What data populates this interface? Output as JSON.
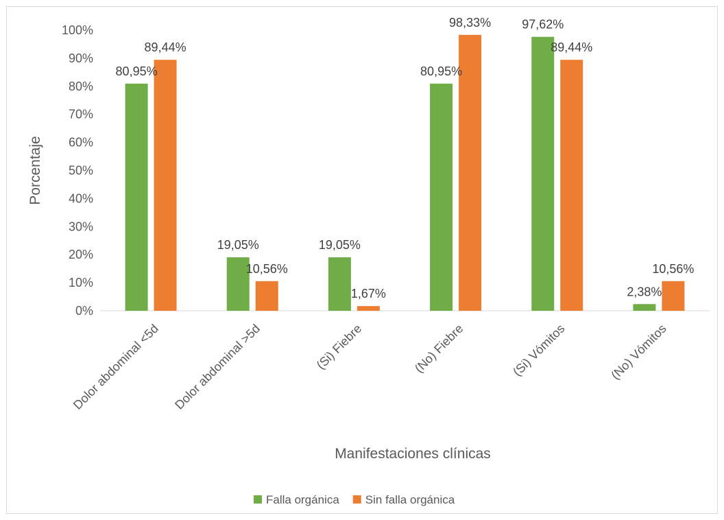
{
  "chart_data": {
    "type": "bar",
    "title": "",
    "xlabel": "Manifestaciones clínicas",
    "ylabel": "Porcentaje",
    "ylim": [
      0,
      100
    ],
    "y_ticks": [
      "0%",
      "10%",
      "20%",
      "30%",
      "40%",
      "50%",
      "60%",
      "70%",
      "80%",
      "90%",
      "100%"
    ],
    "categories": [
      "Dolor abdominal <5d",
      "Dolor abdominal >5d",
      "(Si) Fiebre",
      "(No) Fiebre",
      "(Si) Vómitos",
      "(No) Vómitos"
    ],
    "series": [
      {
        "name": "Falla orgánica",
        "color": "#70ad47",
        "values": [
          80.95,
          19.05,
          19.05,
          80.95,
          97.62,
          2.38
        ],
        "labels": [
          "80,95%",
          "19,05%",
          "19,05%",
          "80,95%",
          "97,62%",
          "2,38%"
        ]
      },
      {
        "name": "Sin falla orgánica",
        "color": "#ed7d31",
        "values": [
          89.44,
          10.56,
          1.67,
          98.33,
          89.44,
          10.56
        ],
        "labels": [
          "89,44%",
          "10,56%",
          "1,67%",
          "98,33%",
          "89,44%",
          "10,56%"
        ]
      }
    ],
    "grid": false,
    "legend_position": "bottom"
  }
}
